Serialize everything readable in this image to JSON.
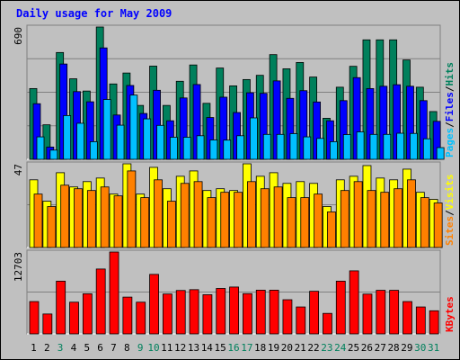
{
  "chart_data": {
    "type": "bar",
    "title": "Daily usage for May 2009",
    "categories": [
      "1",
      "2",
      "3",
      "4",
      "5",
      "6",
      "7",
      "8",
      "9",
      "10",
      "11",
      "12",
      "13",
      "14",
      "15",
      "16",
      "17",
      "18",
      "19",
      "20",
      "21",
      "22",
      "23",
      "24",
      "25",
      "26",
      "27",
      "28",
      "29",
      "30",
      "31"
    ],
    "weekend_days": [
      "3",
      "9",
      "10",
      "16",
      "17",
      "23",
      "24",
      "30",
      "31"
    ],
    "colors": {
      "hits": "#00805c",
      "files": "#0000ff",
      "pages": "#00c0ff",
      "visits": "#ffff00",
      "sites": "#ff8000",
      "kbytes": "#ff0000",
      "weekday_label": "#000000",
      "weekend_label": "#00805c",
      "title": "#0000ff",
      "background": "#c0c0c0"
    },
    "panels": [
      {
        "id": "hits-files-pages",
        "max_label": "690",
        "ylim": [
          0,
          690
        ],
        "legend": [
          {
            "text": "Hits",
            "color": "#00805c"
          },
          {
            "text": "Files",
            "color": "#0000ff"
          },
          {
            "text": "Pages",
            "color": "#00c0ff"
          }
        ],
        "series": [
          {
            "name": "Hits",
            "values": [
              369,
              180,
              557,
              420,
              356,
              690,
              393,
              450,
              281,
              486,
              281,
              407,
              492,
              292,
              476,
              383,
              416,
              438,
              546,
              472,
              505,
              429,
              214,
              376,
              485,
              623,
              623,
              623,
              518,
              376,
              249
            ]
          },
          {
            "name": "Files",
            "values": [
              290,
              64,
              497,
              353,
              300,
              581,
              231,
              385,
              239,
              360,
              201,
              320,
              390,
              218,
              324,
              244,
              347,
              344,
              409,
              318,
              358,
              299,
              201,
              306,
              426,
              369,
              381,
              389,
              381,
              306,
              198
            ]
          },
          {
            "name": "Pages",
            "values": [
              117,
              48,
              228,
              188,
              92,
              312,
              178,
              335,
              211,
              177,
              115,
              115,
              123,
              101,
              100,
              123,
              216,
              130,
              130,
              134,
              117,
              109,
              92,
              129,
              143,
              130,
              130,
              136,
              135,
              107,
              61
            ]
          }
        ]
      },
      {
        "id": "visits-sites",
        "max_label": "47",
        "ylim": [
          0,
          47
        ],
        "legend": [
          {
            "text": "Visits",
            "color": "#ffff00"
          },
          {
            "text": "Sites",
            "color": "#ff8000"
          }
        ],
        "series": [
          {
            "name": "Visits",
            "values": [
              38,
              26,
              42,
              34,
              37,
              39,
              30,
              47,
              30,
              45,
              33,
              40,
              43,
              32,
              33,
              32,
              47,
              40,
              42,
              36,
              37,
              36,
              23,
              38,
              40,
              46,
              39,
              38,
              44,
              31,
              27
            ]
          },
          {
            "name": "Sites",
            "values": [
              30,
              23,
              35,
              33,
              32,
              34,
              29,
              43,
              28,
              38,
              26,
              36,
              37,
              28,
              31,
              31,
              37,
              33,
              34,
              28,
              28,
              30,
              20,
              32,
              37,
              32,
              31,
              33,
              38,
              28,
              25
            ]
          }
        ]
      },
      {
        "id": "kbytes",
        "max_label": "12703",
        "ylim": [
          0,
          12703
        ],
        "legend": [
          {
            "text": "KBytes",
            "color": "#ff0000"
          }
        ],
        "series": [
          {
            "name": "KBytes",
            "values": [
              5017,
              3089,
              8181,
              4921,
              6223,
              10064,
              12703,
              5708,
              4921,
              9232,
              6188,
              6735,
              6863,
              6078,
              7052,
              7270,
              6244,
              6782,
              6782,
              5302,
              4180,
              6613,
              3183,
              8181,
              9782,
              6175,
              6761,
              6761,
              5017,
              4180,
              3588
            ]
          }
        ]
      }
    ]
  }
}
